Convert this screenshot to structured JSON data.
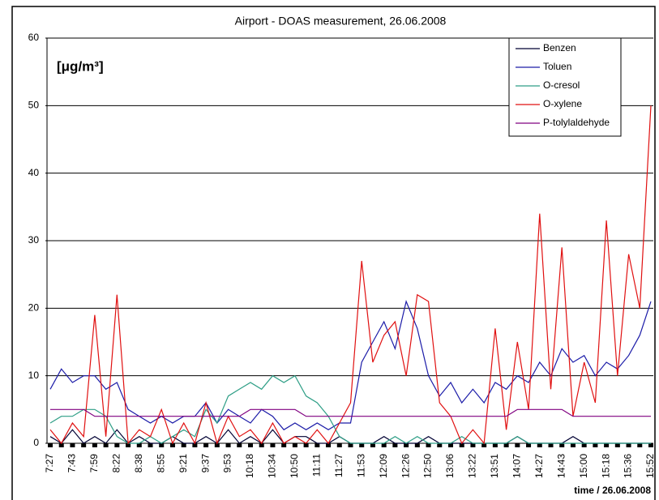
{
  "chart_data": {
    "type": "line",
    "title": "Airport - DOAS measurement, 26.06.2008",
    "annotation": "[μg/m³]",
    "x_label": "time / 26.06.2008",
    "categories": [
      "7:27",
      null,
      "7:43",
      null,
      "7:59",
      null,
      "8:22",
      null,
      "8:38",
      null,
      "8:55",
      null,
      "9:21",
      null,
      "9:37",
      null,
      "9:53",
      null,
      "10:18",
      null,
      "10:34",
      null,
      "10:50",
      null,
      "11:11",
      null,
      "11:27",
      null,
      "11:53",
      null,
      "12:09",
      null,
      "12:26",
      null,
      "12:50",
      null,
      "13:06",
      null,
      "13:22",
      null,
      "13:51",
      null,
      "14:07",
      null,
      "14:27",
      null,
      "14:43",
      null,
      "15:00",
      null,
      "15:18",
      null,
      "15:36",
      null,
      "15:52"
    ],
    "series": [
      {
        "name": "Benzen",
        "color": "#000033",
        "values": [
          1,
          0,
          2,
          0,
          1,
          0,
          2,
          0,
          1,
          0,
          0,
          1,
          0,
          0,
          1,
          0,
          2,
          0,
          1,
          0,
          2,
          0,
          1,
          1,
          0,
          0,
          1,
          0,
          0,
          0,
          1,
          0,
          0,
          0,
          1,
          0,
          0,
          0,
          0,
          0,
          0,
          0,
          1,
          0,
          0,
          0,
          0,
          1,
          0,
          0,
          0,
          0,
          0,
          0,
          0
        ]
      },
      {
        "name": "Toluen",
        "color": "#1c1ca8",
        "values": [
          8,
          11,
          9,
          10,
          10,
          8,
          9,
          5,
          4,
          3,
          4,
          3,
          4,
          4,
          6,
          3,
          5,
          4,
          3,
          5,
          4,
          2,
          3,
          2,
          3,
          2,
          3,
          3,
          12,
          15,
          18,
          14,
          21,
          17,
          10,
          7,
          9,
          6,
          8,
          6,
          9,
          8,
          10,
          9,
          12,
          10,
          14,
          12,
          13,
          10,
          12,
          11,
          13,
          16,
          21
        ]
      },
      {
        "name": "O-cresol",
        "color": "#2e9e86",
        "values": [
          3,
          4,
          4,
          5,
          5,
          4,
          1,
          0,
          0,
          1,
          0,
          1,
          2,
          1,
          5,
          3,
          7,
          8,
          9,
          8,
          10,
          9,
          10,
          7,
          6,
          4,
          1,
          0,
          0,
          0,
          0,
          1,
          0,
          1,
          0,
          0,
          0,
          1,
          0,
          0,
          0,
          0,
          1,
          0,
          0,
          0,
          0,
          0,
          0,
          0,
          0,
          0,
          0,
          0,
          0
        ]
      },
      {
        "name": "O-xylene",
        "color": "#e01010",
        "values": [
          2,
          0,
          3,
          1,
          19,
          1,
          22,
          0,
          2,
          1,
          5,
          0,
          3,
          0,
          6,
          0,
          4,
          1,
          2,
          0,
          3,
          0,
          1,
          0,
          2,
          0,
          3,
          6,
          27,
          12,
          16,
          18,
          10,
          22,
          21,
          6,
          4,
          0,
          2,
          0,
          17,
          2,
          15,
          5,
          34,
          8,
          29,
          4,
          12,
          6,
          33,
          10,
          28,
          20,
          50
        ]
      },
      {
        "name": "P-tolylaldehyde",
        "color": "#800080",
        "values": [
          5,
          5,
          5,
          5,
          4,
          4,
          4,
          4,
          4,
          4,
          4,
          4,
          4,
          4,
          4,
          4,
          4,
          4,
          5,
          5,
          5,
          5,
          5,
          4,
          4,
          4,
          4,
          4,
          4,
          4,
          4,
          4,
          4,
          4,
          4,
          4,
          4,
          4,
          4,
          4,
          4,
          4,
          5,
          5,
          5,
          5,
          5,
          4,
          4,
          4,
          4,
          4,
          4,
          4,
          4
        ]
      }
    ],
    "ylim": [
      0,
      60
    ],
    "yticks": [
      0,
      10,
      20,
      30,
      40,
      50,
      60
    ],
    "grid": true,
    "legend": "top-right"
  }
}
